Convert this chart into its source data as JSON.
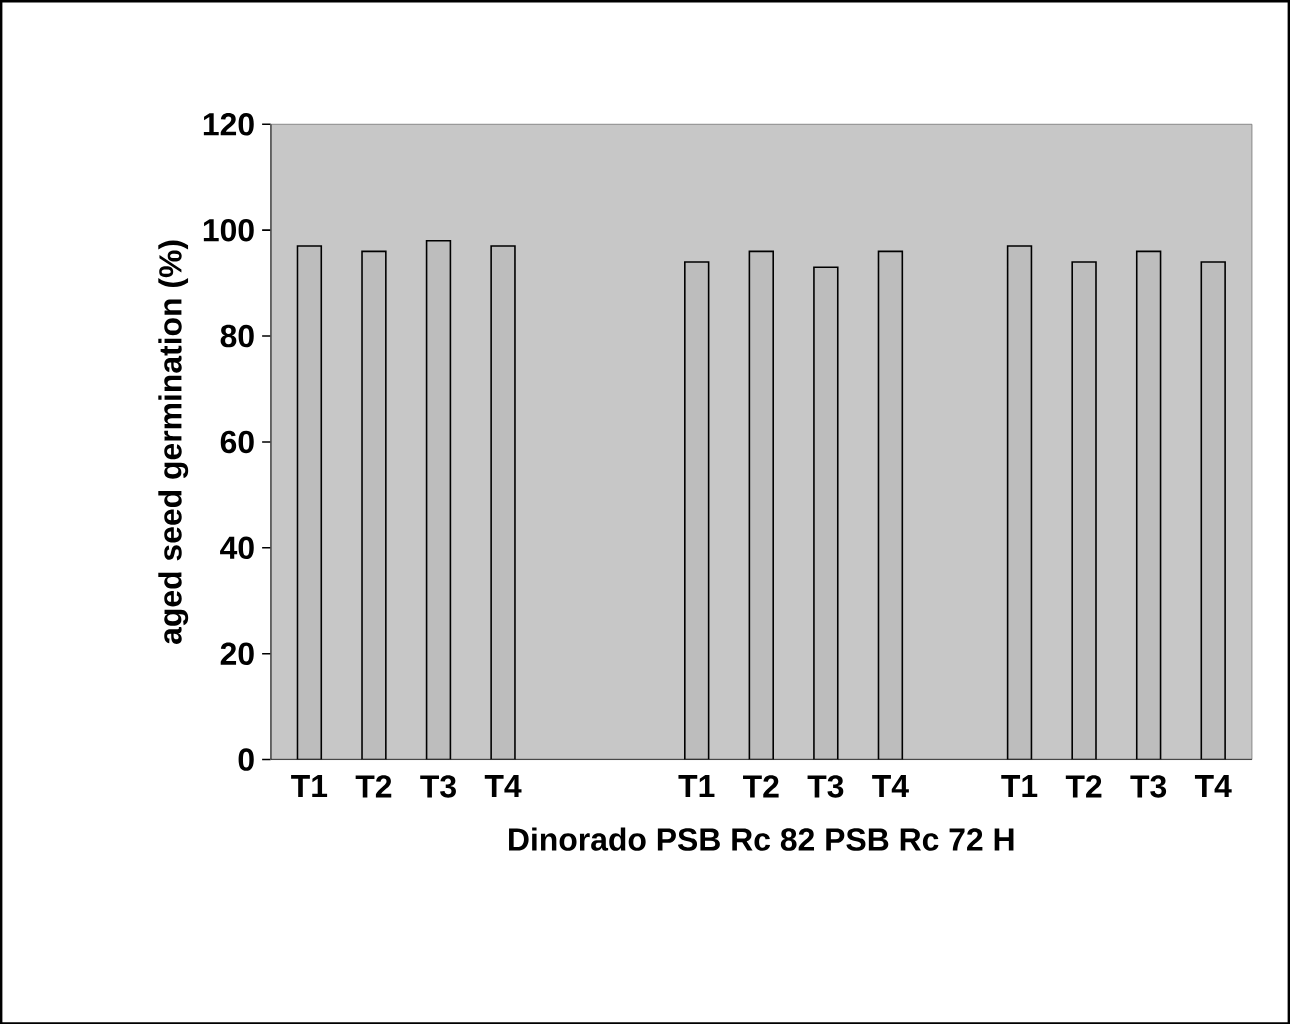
{
  "chart_data": {
    "type": "bar",
    "xlabel": "Dinorado   PSB Rc 82   PSB Rc 72 H",
    "ylabel": "aged seed germination (%)",
    "categories": [
      "T1",
      "T2",
      "T3",
      "T4",
      null,
      null,
      "T1",
      "T2",
      "T3",
      "T4",
      null,
      "T1",
      "T2",
      "T3",
      "T4"
    ],
    "values": [
      97,
      96,
      98,
      97,
      null,
      null,
      94,
      96,
      93,
      96,
      null,
      97,
      94,
      96,
      94
    ],
    "color": "#bdbdbd",
    "ylim": [
      0,
      120
    ],
    "yticks": [
      0,
      20,
      40,
      60,
      80,
      100,
      120
    ]
  }
}
